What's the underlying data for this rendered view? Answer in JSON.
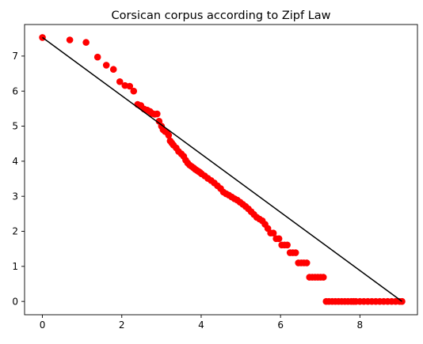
{
  "chart_data": {
    "type": "scatter",
    "title": "Corsican corpus according to Zipf Law",
    "xlabel": "",
    "ylabel": "",
    "xlim": [
      -0.45,
      9.45
    ],
    "ylim": [
      -0.38,
      7.9
    ],
    "x_ticks": [
      "0",
      "2",
      "4",
      "6",
      "8"
    ],
    "y_ticks": [
      "0",
      "1",
      "2",
      "3",
      "4",
      "5",
      "6",
      "7"
    ],
    "grid": false,
    "legend": "none",
    "colors": {
      "points": "#ff0000",
      "fit_line": "#000000",
      "axes": "#000000"
    },
    "series": [
      {
        "type": "scatter",
        "x": [
          0,
          0.69,
          1.1,
          1.39,
          1.61,
          1.79,
          1.95,
          2.08,
          2.2,
          2.3,
          2.4,
          2.48,
          2.56,
          2.64,
          2.71,
          2.77,
          2.83,
          2.89,
          2.94,
          3.0,
          3.04,
          3.09,
          3.14,
          3.18,
          3.22,
          3.26,
          3.3,
          3.37,
          3.43,
          3.5,
          3.56,
          3.61,
          3.66,
          3.71,
          3.76,
          3.81,
          3.85,
          3.89,
          3.93,
          3.97,
          4.01,
          4.09,
          4.17,
          4.25,
          4.33,
          4.41,
          4.49,
          4.56,
          4.63,
          4.7,
          4.77,
          4.84,
          4.91,
          4.98,
          5.05,
          5.12,
          5.19,
          5.26,
          5.33,
          5.4,
          5.47,
          5.54,
          5.61,
          5.68,
          5.75,
          5.82,
          5.89,
          5.96,
          6.03,
          6.1,
          6.17,
          6.24,
          6.31,
          6.38,
          6.45,
          6.52,
          6.59,
          6.66,
          6.73,
          6.8,
          6.87,
          6.94,
          7.01,
          7.08,
          7.15,
          7.22,
          7.3,
          7.38,
          7.46,
          7.54,
          7.62,
          7.7,
          7.78,
          7.84,
          7.9,
          8.0,
          8.1,
          8.2,
          8.3,
          8.4,
          8.5,
          8.6,
          8.7,
          8.8,
          8.9,
          9.0,
          9.06
        ],
        "y": [
          7.53,
          7.46,
          7.39,
          6.97,
          6.74,
          6.62,
          6.27,
          6.16,
          6.14,
          6.0,
          5.62,
          5.59,
          5.49,
          5.46,
          5.42,
          5.36,
          5.34,
          5.35,
          5.14,
          5.0,
          4.9,
          4.85,
          4.82,
          4.74,
          4.58,
          4.52,
          4.46,
          4.38,
          4.28,
          4.21,
          4.14,
          4.03,
          3.95,
          3.89,
          3.85,
          3.81,
          3.77,
          3.74,
          3.71,
          3.68,
          3.64,
          3.58,
          3.51,
          3.45,
          3.38,
          3.3,
          3.22,
          3.12,
          3.07,
          3.03,
          2.98,
          2.93,
          2.89,
          2.83,
          2.77,
          2.71,
          2.64,
          2.56,
          2.48,
          2.4,
          2.35,
          2.3,
          2.2,
          2.08,
          1.95,
          1.95,
          1.79,
          1.79,
          1.61,
          1.61,
          1.61,
          1.39,
          1.39,
          1.39,
          1.1,
          1.1,
          1.1,
          1.1,
          0.69,
          0.69,
          0.69,
          0.69,
          0.69,
          0.69,
          0,
          0,
          0,
          0,
          0,
          0,
          0,
          0,
          0,
          0,
          0,
          0,
          0,
          0,
          0,
          0,
          0,
          0,
          0,
          0,
          0,
          0,
          0
        ]
      },
      {
        "type": "line",
        "x": [
          0,
          9.06
        ],
        "y": [
          7.53,
          0
        ]
      }
    ]
  }
}
